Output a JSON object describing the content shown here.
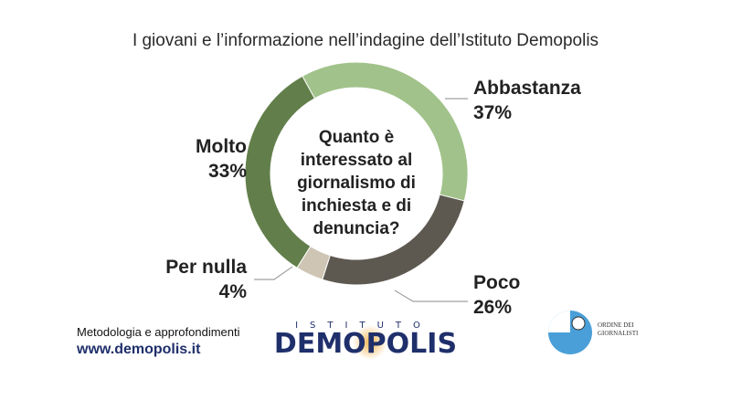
{
  "title": "I giovani e l’informazione nell’indagine dell’Istituto Demopolis",
  "chart_data": {
    "type": "pie",
    "center_text": "Quanto è interessato al giornalismo di inchiesta e di denuncia?",
    "categories": [
      "Abbastanza",
      "Poco",
      "Per nulla",
      "Molto"
    ],
    "values": [
      37,
      26,
      4,
      33
    ],
    "value_labels": [
      "37%",
      "26%",
      "4%",
      "33%"
    ],
    "colors": [
      "#a1c28a",
      "#5d5850",
      "#cfc5b4",
      "#627f4b"
    ]
  },
  "footer": {
    "methodology": "Metodologia e approfondimenti",
    "website": "www.demopolis.it"
  },
  "logos": {
    "demopolis_top": "ISTITUTO",
    "demopolis_main": "DEMOPOLIS",
    "odg_text": "ORDINE DEI GIORNALISTI",
    "odg_color": "#4a9fd8"
  }
}
